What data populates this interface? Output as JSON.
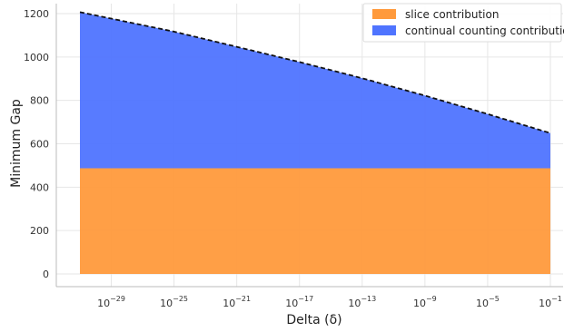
{
  "chart_data": {
    "type": "area",
    "title": "",
    "xlabel": "Delta (δ)",
    "ylabel": "Minimum Gap",
    "x_scale": "log",
    "x_tick_exponents": [
      -29,
      -25,
      -21,
      -17,
      -13,
      -9,
      -5,
      -1
    ],
    "x_tick_base": "10",
    "xlim": [
      "1e-31",
      "1e-1"
    ],
    "ylim": [
      0,
      1200
    ],
    "y_ticks": [
      0,
      200,
      400,
      600,
      800,
      1000,
      1200
    ],
    "grid": true,
    "stacked": true,
    "legend_position": "top-right",
    "x": [
      "1e-31",
      "1e-29",
      "1e-25",
      "1e-21",
      "1e-17",
      "1e-13",
      "1e-9",
      "1e-5",
      "1e-1"
    ],
    "series": [
      {
        "name": "slice contribution",
        "color": "#ff9a3c",
        "values": [
          487,
          487,
          487,
          487,
          487,
          487,
          487,
          487,
          487
        ]
      },
      {
        "name": "continual counting contribution",
        "color": "#4f74ff",
        "values": [
          720,
          690,
          630,
          560,
          490,
          415,
          335,
          250,
          162
        ]
      }
    ],
    "total_line": {
      "style": "dashed",
      "color": "#111111",
      "values": [
        1207,
        1177,
        1117,
        1047,
        977,
        902,
        822,
        737,
        649
      ]
    }
  }
}
